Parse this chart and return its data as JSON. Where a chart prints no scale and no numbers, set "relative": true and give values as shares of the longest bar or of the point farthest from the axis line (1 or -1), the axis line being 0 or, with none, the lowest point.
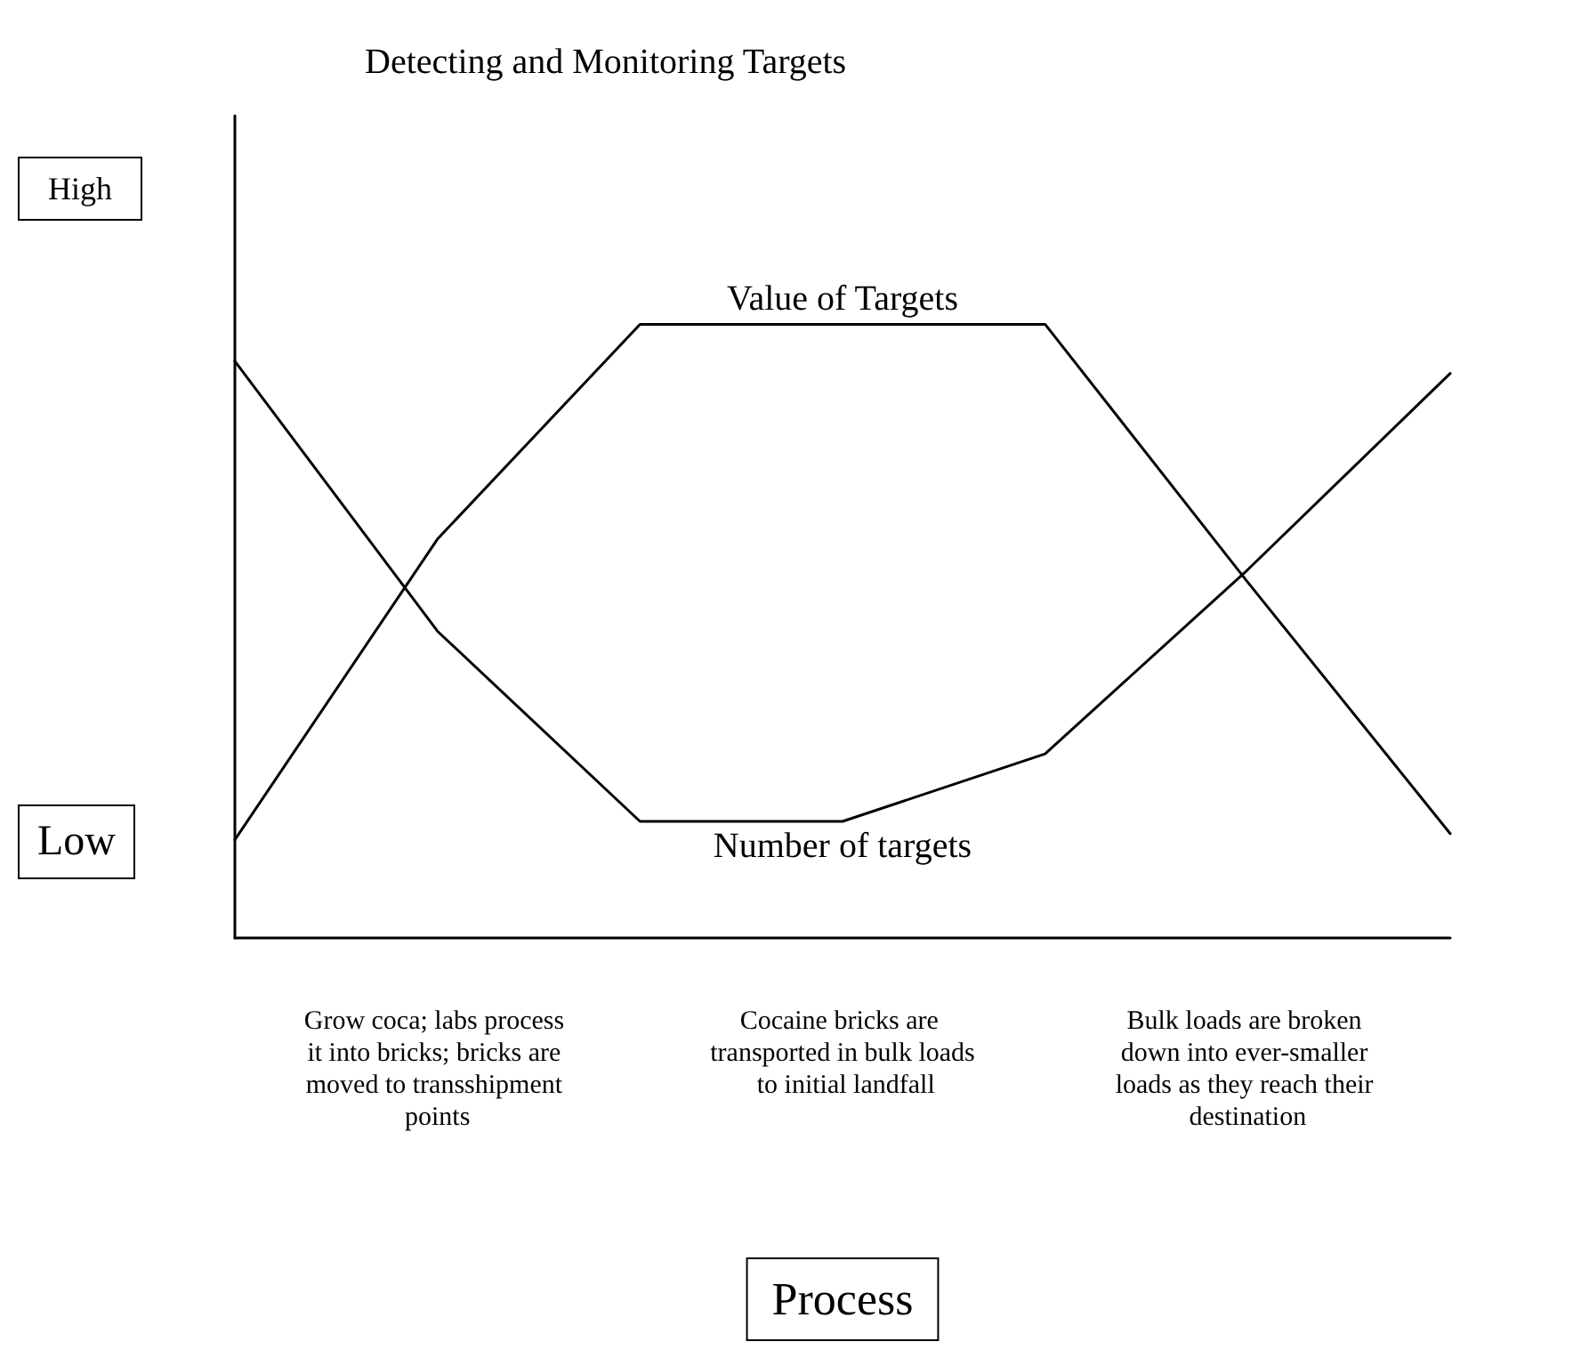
{
  "chart_data": {
    "type": "line",
    "title": "Detecting and Monitoring Targets",
    "xlabel": "Process",
    "relative": true,
    "categories": [
      null,
      "Grow coca; labs process it into bricks; bricks are moved to transshipment points",
      null,
      "Cocaine bricks are transported in bulk loads to initial landfall",
      null,
      "Bulk loads are broken down into ever-smaller loads as they reach their destination",
      null
    ],
    "series": [
      {
        "name": "Value of Targets",
        "color": "#000000",
        "values": [
          0.16,
          0.65,
          1,
          1,
          1,
          0.58,
          0.17
        ]
      },
      {
        "name": "Number of targets",
        "color": "#000000",
        "values": [
          0.94,
          0.5,
          0.19,
          0.19,
          0.3,
          0.6,
          0.92
        ]
      }
    ],
    "annotations": [
      "High",
      "Low"
    ],
    "legend": false,
    "grid": false,
    "marker": "none",
    "line_style": "solid"
  }
}
